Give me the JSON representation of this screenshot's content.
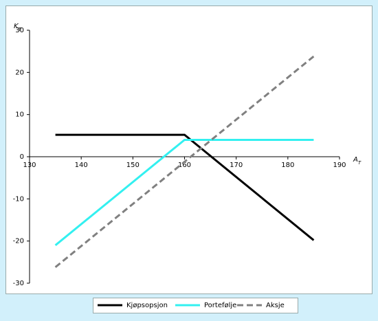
{
  "chart_data": {
    "type": "line",
    "x_label": "A",
    "x_label_sub": "T",
    "y_label": "K",
    "y_label_sub": "T",
    "x": [
      135,
      160,
      185
    ],
    "series": [
      {
        "name": "Kjøpsopsjon",
        "color": "#000000",
        "dash": false,
        "values": [
          5.2,
          5.2,
          -19.8
        ]
      },
      {
        "name": "Portefølje",
        "color": "#33f0f0",
        "dash": false,
        "values": [
          -21,
          4,
          4
        ]
      },
      {
        "name": "Aksje",
        "color": "#808080",
        "dash": true,
        "values": [
          -26.2,
          -1.2,
          23.8
        ]
      }
    ],
    "xlim": [
      130,
      190
    ],
    "xticks": [
      130,
      140,
      150,
      160,
      170,
      180,
      190
    ],
    "ylim": [
      -30,
      30
    ],
    "yticks": [
      -30,
      -20,
      -10,
      0,
      10,
      20,
      30
    ],
    "grid": false,
    "legend": "bottom"
  }
}
